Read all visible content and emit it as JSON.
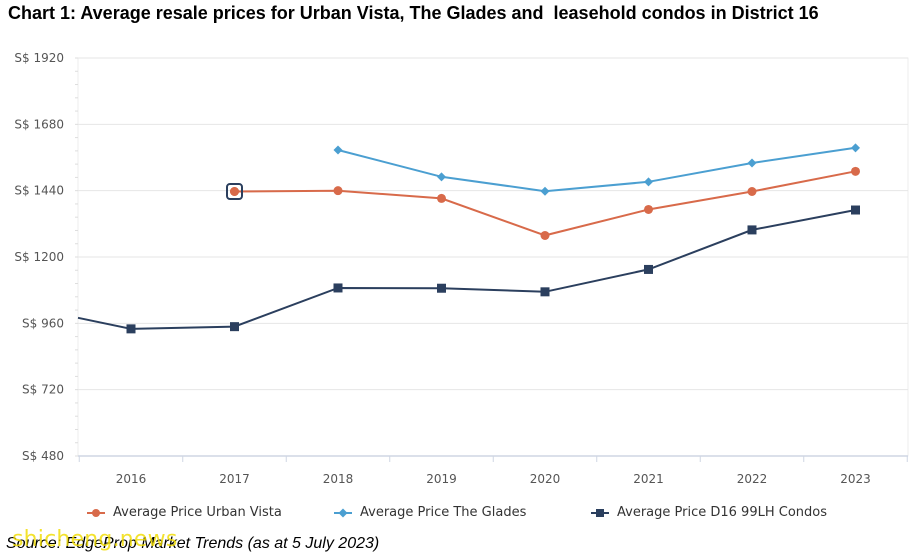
{
  "title": "Chart 1: Average resale prices for Urban Vista, The Glades and  leasehold condos in District 16",
  "source": "Source: EdgeProp Market Trends (as at 5 July 2023)",
  "watermark": "shicheng.news",
  "colors": {
    "urban_vista": "#d86a4a",
    "the_glades": "#4b9fd1",
    "d16_condos": "#2b3f5e",
    "grid": "#e6e6e6",
    "axis": "#cfd6e3",
    "tick_text": "#555555"
  },
  "chart_data": {
    "type": "line",
    "x": [
      "2016",
      "2017",
      "2018",
      "2019",
      "2020",
      "2021",
      "2022",
      "2023"
    ],
    "ylim": [
      480,
      1920
    ],
    "yticks": [
      480,
      720,
      960,
      1200,
      1440,
      1680,
      1920
    ],
    "ytick_labels": [
      "S$ 480",
      "S$ 720",
      "S$ 960",
      "S$ 1200",
      "S$ 1440",
      "S$ 1680",
      "S$ 1920"
    ],
    "grid": true,
    "legend_position": "bottom",
    "series": [
      {
        "name": "Average Price Urban Vista",
        "key": "urban_vista",
        "marker": "circle",
        "values": [
          null,
          1437,
          1440,
          1412,
          1278,
          1372,
          1437,
          1510
        ]
      },
      {
        "name": "Average Price The Glades",
        "key": "the_glades",
        "marker": "diamond",
        "values": [
          null,
          null,
          1587,
          1490,
          1438,
          1472,
          1540,
          1595
        ]
      },
      {
        "name": "Average Price D16 99LH Condos",
        "key": "d16_condos",
        "marker": "square",
        "values": [
          null,
          948,
          1088,
          1087,
          1074,
          1155,
          1298,
          1370
        ],
        "leading_value": 980,
        "first_point": {
          "x": "2016",
          "value": 940
        }
      }
    ],
    "highlight": {
      "series": "Average Price Urban Vista",
      "x": "2017"
    }
  }
}
